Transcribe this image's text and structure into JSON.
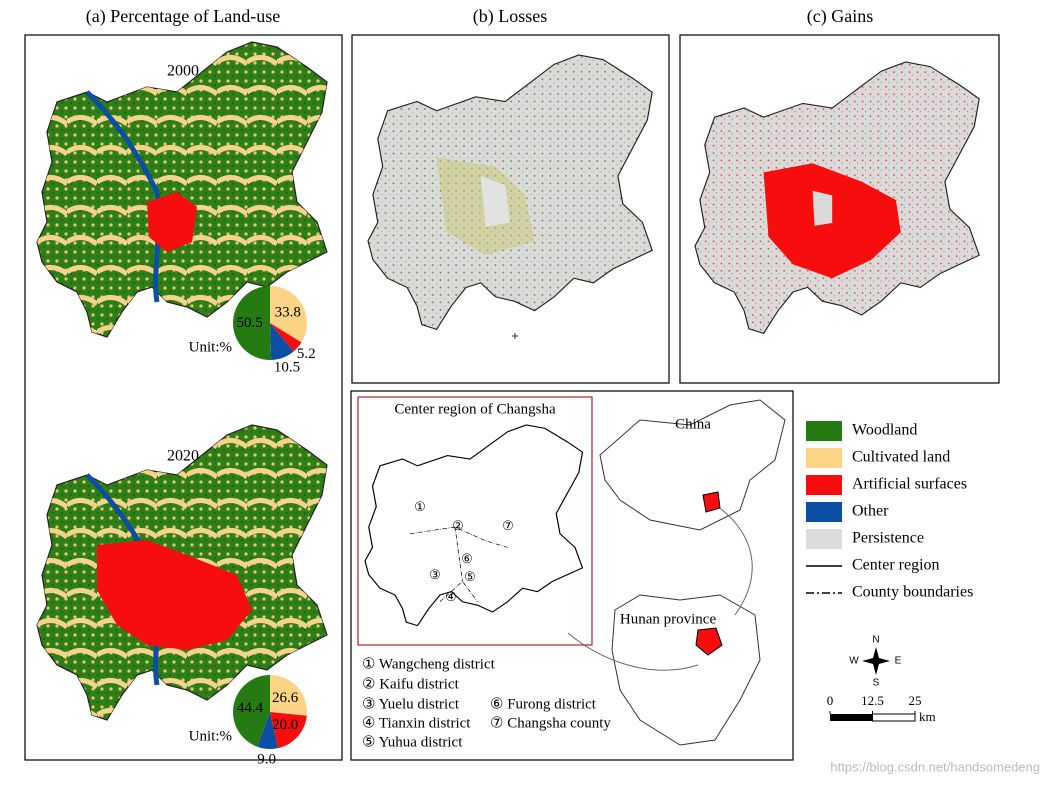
{
  "panels": {
    "a": "(a) Percentage of Land-use",
    "b": "(b) Losses",
    "c": "(c) Gains"
  },
  "chart_data": [
    {
      "type": "pie",
      "title": "2000",
      "unit": "Unit:%",
      "values": [
        33.8,
        5.2,
        10.5,
        50.5
      ],
      "colors": [
        "#fcd486",
        "#f70d0d",
        "#0b4fa5",
        "#267a12"
      ]
    },
    {
      "type": "pie",
      "title": "2020",
      "unit": "Unit:%",
      "values": [
        26.6,
        20.0,
        9.0,
        44.4
      ],
      "value_labels": [
        "26.6",
        "20.0",
        "9.0",
        "44.4"
      ],
      "colors": [
        "#fcd486",
        "#f70d0d",
        "#0b4fa5",
        "#267a12"
      ]
    }
  ],
  "inset": {
    "title": "Center region of Changsha",
    "map_numbers": [
      "①",
      "②",
      "③",
      "④",
      "⑤",
      "⑥",
      "⑦"
    ],
    "districts": [
      "① Wangcheng district",
      "② Kaifu district",
      "③ Yuelu district",
      "④ Tianxin district",
      "⑤ Yuhua district",
      "⑥ Furong district",
      "⑦ Changsha county"
    ],
    "china": "China",
    "hunan": "Hunan province"
  },
  "legend": [
    {
      "label": "Woodland",
      "color": "#267a12"
    },
    {
      "label": "Cultivated land",
      "color": "#fcd486"
    },
    {
      "label": "Artificial surfaces",
      "color": "#f70d0d"
    },
    {
      "label": "Other",
      "color": "#0b4fa5"
    },
    {
      "label": "Persistence",
      "color": "#dcdcdc"
    },
    {
      "label": "Center region",
      "line": "solid"
    },
    {
      "label": "County boundaries",
      "line": "dashdot"
    }
  ],
  "compass": {
    "n": "N",
    "e": "E",
    "s": "S",
    "w": "W"
  },
  "scale": {
    "ticks": [
      0,
      12.5,
      25
    ],
    "unit": "km"
  },
  "watermark": "https://blog.csdn.net/handsomedeng"
}
